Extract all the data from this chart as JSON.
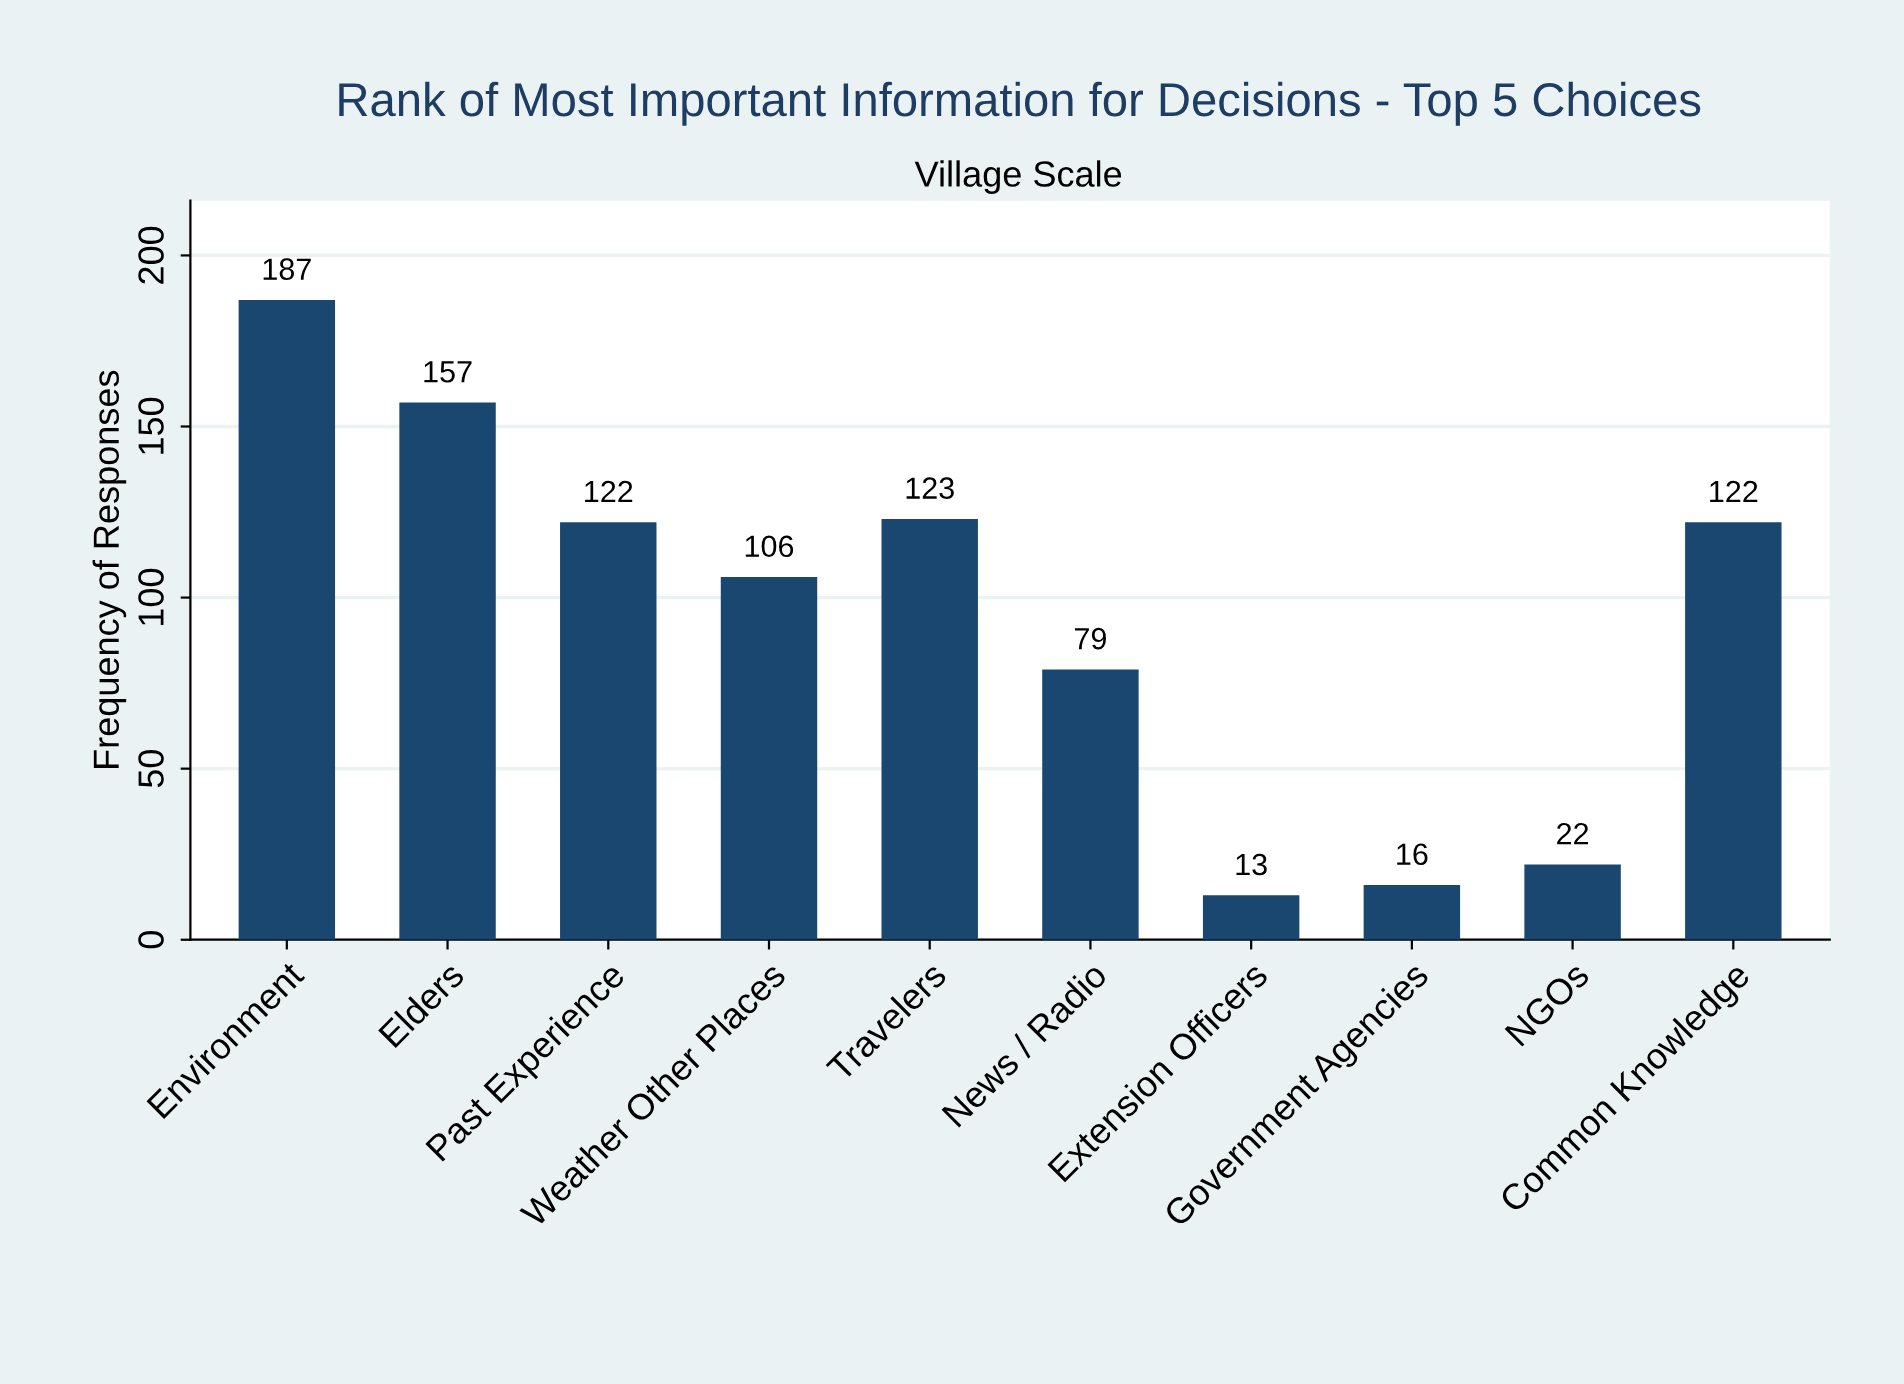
{
  "chart_data": {
    "type": "bar",
    "title": "Rank of Most Important Information for Decisions - Top 5 Choices",
    "subtitle": "Village Scale",
    "ylabel": "Frequency of Responses",
    "categories": [
      "Environment",
      "Elders",
      "Past Experience",
      "Weather Other Places",
      "Travelers",
      "News / Radio",
      "Extension Officers",
      "Government Agencies",
      "NGOs",
      "Common Knowledge"
    ],
    "values": [
      187,
      157,
      122,
      106,
      123,
      79,
      13,
      16,
      22,
      122
    ],
    "color": "#1a476f",
    "ylim": [
      0,
      216
    ],
    "yticks": [
      0,
      50,
      100,
      150,
      200
    ],
    "grid": "y",
    "data_labels": true
  }
}
